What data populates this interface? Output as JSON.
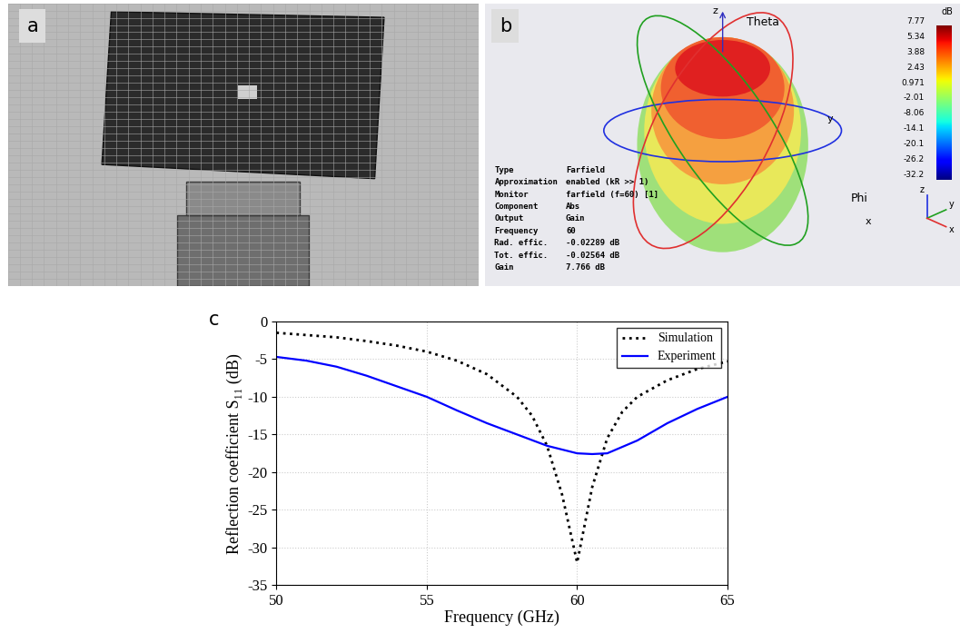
{
  "panel_a": {
    "label": "a"
  },
  "panel_b": {
    "label": "b",
    "angle_labels": [
      "Theta",
      "Phi"
    ],
    "axes_labels": [
      "z",
      "y",
      "x"
    ],
    "triad_labels": [
      "z",
      "y",
      "x"
    ],
    "colorbar": {
      "label": "dB",
      "ticks": [
        7.77,
        5.34,
        3.88,
        2.43,
        0.971,
        -2.01,
        -8.06,
        -14.1,
        -20.1,
        -26.2,
        -32.2
      ]
    },
    "info": [
      [
        "Type",
        "Farfield"
      ],
      [
        "Approximation",
        "enabled (kR >> 1)"
      ],
      [
        "Monitor",
        "farfield (f=60) [1]"
      ],
      [
        "Component",
        "Abs"
      ],
      [
        "Output",
        "Gain"
      ],
      [
        "Frequency",
        "60"
      ],
      [
        "Rad. effic.",
        "-0.02289 dB"
      ],
      [
        "Tot. effic.",
        "-0.02564 dB"
      ],
      [
        "Gain",
        "7.766 dB"
      ]
    ]
  },
  "chart_data": {
    "type": "line",
    "panel_label": "c",
    "x_label": "Frequency (GHz)",
    "y_label": "Reflection coefficient S₁₁ (dB)",
    "xlim": [
      50,
      65
    ],
    "xticks": [
      50,
      55,
      60,
      65
    ],
    "ylim": [
      -35,
      0
    ],
    "yticks": [
      -35,
      -30,
      -25,
      -20,
      -15,
      -10,
      -5,
      0
    ],
    "grid": true,
    "legend": "upper right",
    "series": [
      {
        "name": "Simulation",
        "color": "#000000",
        "line_style": "dotted",
        "x": [
          50,
          51,
          52,
          53,
          54,
          55,
          56,
          57,
          58,
          58.5,
          59,
          59.5,
          60,
          60.5,
          61,
          61.5,
          62,
          63,
          64,
          65
        ],
        "values": [
          -1.5,
          -1.8,
          -2.1,
          -2.6,
          -3.2,
          -4.0,
          -5.2,
          -7.0,
          -10.0,
          -12.5,
          -16.5,
          -23.0,
          -32.0,
          -22.0,
          -15.5,
          -12.0,
          -10.0,
          -7.8,
          -6.3,
          -5.3
        ]
      },
      {
        "name": "Experiment",
        "color": "#0000ff",
        "line_style": "solid",
        "x": [
          50,
          51,
          52,
          53,
          54,
          55,
          56,
          57,
          58,
          59,
          60,
          60.5,
          61,
          62,
          63,
          64,
          65
        ],
        "values": [
          -4.7,
          -5.2,
          -6.0,
          -7.2,
          -8.6,
          -10.0,
          -11.8,
          -13.5,
          -15.0,
          -16.5,
          -17.5,
          -17.6,
          -17.5,
          -15.8,
          -13.5,
          -11.6,
          -10.0
        ]
      }
    ]
  }
}
